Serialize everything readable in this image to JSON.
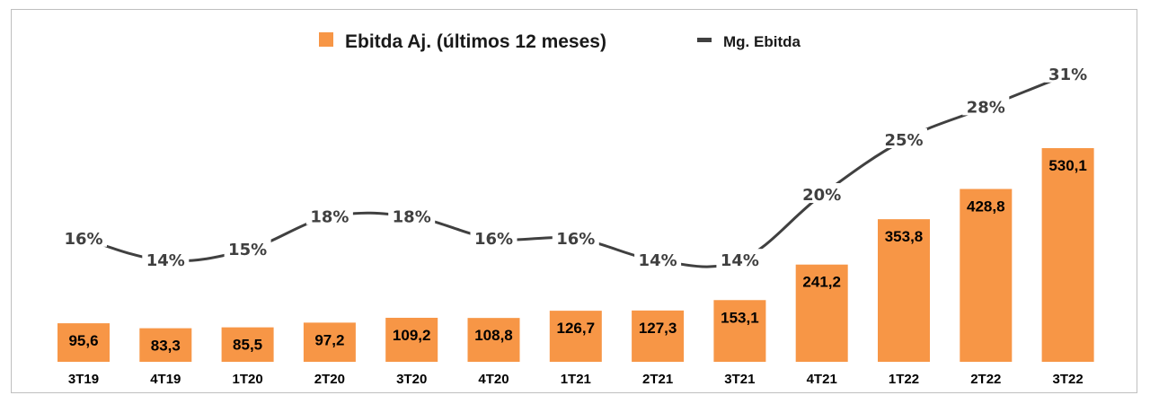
{
  "chart_data": {
    "type": "bar",
    "categories": [
      "3T19",
      "4T19",
      "1T20",
      "2T20",
      "3T20",
      "4T20",
      "1T21",
      "2T21",
      "3T21",
      "4T21",
      "1T22",
      "2T22",
      "3T22"
    ],
    "series": [
      {
        "name": "Ebitda Aj. (últimos 12 meses)",
        "type": "bar",
        "values": [
          95.6,
          83.3,
          85.5,
          97.2,
          109.2,
          108.8,
          126.7,
          127.3,
          153.1,
          241.2,
          353.8,
          428.8,
          530.1
        ],
        "labels": [
          "95,6",
          "83,3",
          "85,5",
          "97,2",
          "109,2",
          "108,8",
          "126,7",
          "127,3",
          "153,1",
          "241,2",
          "353,8",
          "428,8",
          "530,1"
        ],
        "color": "#F79646"
      },
      {
        "name": "Mg. Ebitda",
        "type": "line",
        "values": [
          16,
          14,
          15,
          18,
          18,
          16,
          16,
          14,
          14,
          20,
          25,
          28,
          31
        ],
        "labels": [
          "16%",
          "14%",
          "15%",
          "18%",
          "18%",
          "16%",
          "16%",
          "14%",
          "14%",
          "20%",
          "25%",
          "28%",
          "31%"
        ],
        "color": "#404040"
      }
    ],
    "legend": "top-center",
    "grid": false,
    "ylim": [
      0,
      560
    ]
  }
}
